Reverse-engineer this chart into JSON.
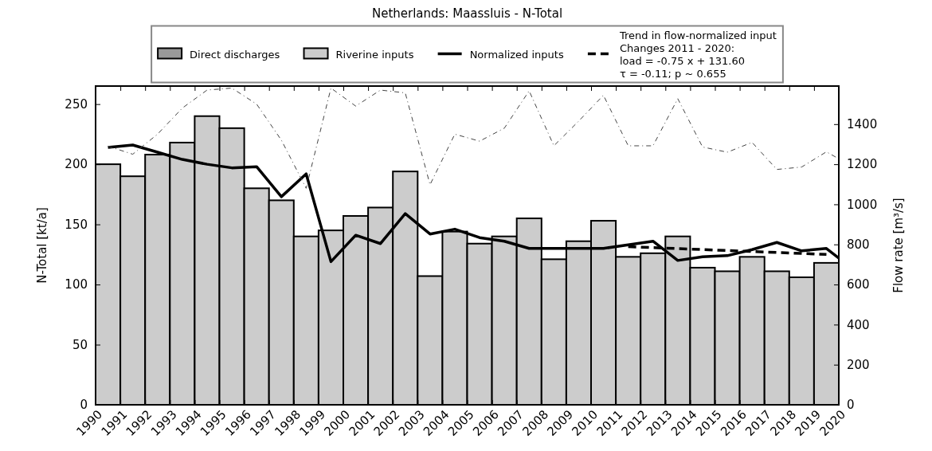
{
  "chart_data": {
    "type": "bar",
    "title": "Netherlands: Maassluis - N-Total",
    "ylabel": "N-Total [kt/a]",
    "y2label": "Flow rate [m³/s]",
    "xlim": [
      1990,
      2020
    ],
    "xticks": [
      1990,
      1991,
      1992,
      1993,
      1994,
      1995,
      1996,
      1997,
      1998,
      1999,
      2000,
      2001,
      2002,
      2003,
      2004,
      2005,
      2006,
      2007,
      2008,
      2009,
      2010,
      2011,
      2012,
      2013,
      2014,
      2015,
      2016,
      2017,
      2018,
      2019,
      2020
    ],
    "ylim": [
      0,
      265
    ],
    "yticks": [
      0,
      50,
      100,
      150,
      200,
      250
    ],
    "y2lim": [
      0,
      1590
    ],
    "y2ticks": [
      0,
      200,
      400,
      600,
      800,
      1000,
      1200,
      1400
    ],
    "grid": false,
    "legend": "top",
    "series": [
      {
        "name": "Direct discharges",
        "color": "#999999",
        "x": [
          1990,
          1991,
          1992,
          1993,
          1994,
          1995,
          1996,
          1997,
          1998,
          1999,
          2000,
          2001,
          2002,
          2003,
          2004,
          2005,
          2006,
          2007,
          2008,
          2009,
          2010,
          2011,
          2012,
          2013,
          2014,
          2015,
          2016,
          2017,
          2018,
          2019
        ],
        "values": [
          0,
          0,
          0,
          0,
          0,
          0,
          0,
          0,
          0,
          0,
          0,
          0,
          0,
          0,
          0,
          0,
          0,
          0,
          0,
          0,
          0,
          0,
          0,
          0,
          0,
          0,
          0,
          0,
          0,
          0
        ]
      },
      {
        "name": "Riverine inputs",
        "color": "#cccccc",
        "x": [
          1990,
          1991,
          1992,
          1993,
          1994,
          1995,
          1996,
          1997,
          1998,
          1999,
          2000,
          2001,
          2002,
          2003,
          2004,
          2005,
          2006,
          2007,
          2008,
          2009,
          2010,
          2011,
          2012,
          2013,
          2014,
          2015,
          2016,
          2017,
          2018,
          2019
        ],
        "values": [
          200,
          190,
          208,
          218,
          240,
          230,
          180,
          170,
          140,
          145,
          157,
          164,
          194,
          107,
          144,
          134,
          140,
          155,
          121,
          136,
          153,
          123,
          126,
          140,
          114,
          111,
          123,
          111,
          106,
          118
        ]
      },
      {
        "name": "Normalized inputs",
        "type": "line",
        "color": "#000000",
        "line_style": "solid",
        "x": [
          1990.5,
          1991.5,
          1992.5,
          1993.5,
          1994.5,
          1995.5,
          1996.5,
          1997.5,
          1998.5,
          1999.5,
          2000.5,
          2001.5,
          2002.5,
          2003.5,
          2004.5,
          2005.5,
          2006.5,
          2007.5,
          2008.5,
          2009.5,
          2010.5,
          2011.5,
          2012.5,
          2013.5,
          2014.5,
          2015.5,
          2016.5,
          2017.5,
          2018.5,
          2019.5,
          2020
        ],
        "values": [
          214,
          216,
          210,
          204,
          200,
          197,
          198,
          173,
          192,
          119,
          141,
          134,
          159,
          142,
          146,
          139,
          136,
          130,
          130,
          130,
          130,
          133,
          136,
          120,
          123,
          124,
          129,
          135,
          128,
          130,
          122
        ]
      },
      {
        "name": "Trend in flow-normalized input\nChanges 2011 - 2020:\nload = -0.75 x + 131.60\nτ = -0.11; p ~ 0.655",
        "type": "line",
        "color": "#000000",
        "line_style": "dashed",
        "x": [
          2011.5,
          2019.5
        ],
        "values": [
          131.5,
          125
        ]
      },
      {
        "type": "line",
        "axis": "y2",
        "color": "#444444",
        "line_style": "dotted",
        "x": [
          1990.5,
          1991.5,
          1992.5,
          1993.5,
          1994.5,
          1995.5,
          1996.5,
          1997.5,
          1998.5,
          1999.5,
          2000.5,
          2001.5,
          2002.5,
          2003.5,
          2004.5,
          2005.5,
          2006.5,
          2007.5,
          2008.5,
          2009.5,
          2010.5,
          2011.5,
          2012.5,
          2013.5,
          2014.5,
          2015.5,
          2016.5,
          2017.5,
          2018.5,
          2019.5,
          2020
        ],
        "values": [
          1290,
          1250,
          1350,
          1480,
          1570,
          1580,
          1500,
          1320,
          1080,
          1580,
          1490,
          1570,
          1556,
          1098,
          1350,
          1315,
          1380,
          1566,
          1292,
          1415,
          1544,
          1292,
          1292,
          1527,
          1286,
          1260,
          1309,
          1174,
          1186,
          1262,
          1227
        ]
      }
    ]
  }
}
